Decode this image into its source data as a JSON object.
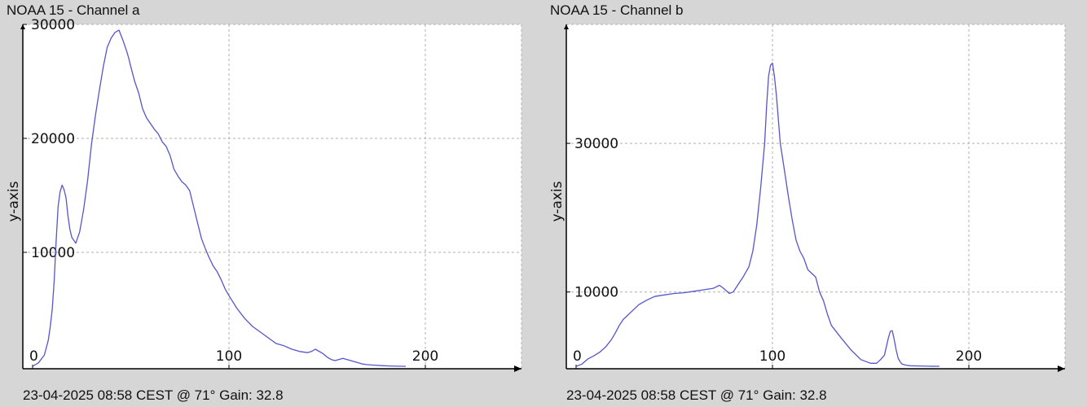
{
  "chart_data": [
    {
      "type": "line",
      "title": "NOAA 15 - Channel a",
      "footer": "23-04-2025 08:58 CEST @ 71° Gain: 32.8",
      "xlabel": "",
      "ylabel": "y-axis",
      "xlim": [
        0,
        255
      ],
      "ylim": [
        0,
        30000
      ],
      "x_ticks": [
        0,
        100,
        200
      ],
      "y_ticks": [
        10000,
        20000,
        30000
      ],
      "grid": true,
      "line_color": "#5555cc",
      "series": [
        {
          "x": [
            0,
            3,
            6,
            8,
            9,
            10,
            11,
            12,
            13,
            14,
            15,
            16,
            17,
            18,
            19,
            20,
            22,
            24,
            26,
            28,
            30,
            32,
            34,
            36,
            38,
            40,
            42,
            44,
            46,
            48,
            49,
            50,
            52,
            54,
            56,
            58,
            60,
            62,
            64,
            66,
            68,
            70,
            72,
            74,
            76,
            78,
            80,
            82,
            84,
            86,
            88,
            90,
            92,
            94,
            96,
            98,
            100,
            104,
            108,
            112,
            116,
            120,
            124,
            128,
            132,
            136,
            140,
            142,
            144,
            148,
            150,
            152,
            154,
            156,
            158,
            160,
            162,
            164,
            166,
            168,
            170,
            174,
            178,
            182,
            186,
            190
          ],
          "y": [
            0,
            300,
            1000,
            2300,
            3500,
            5000,
            7500,
            11000,
            14000,
            15300,
            15900,
            15500,
            14800,
            13200,
            12000,
            11300,
            10800,
            11800,
            13800,
            16300,
            19500,
            22000,
            24200,
            26300,
            28000,
            28800,
            29300,
            29500,
            28600,
            27600,
            27000,
            26300,
            25000,
            24000,
            22600,
            21800,
            21300,
            20800,
            20400,
            19700,
            19300,
            18500,
            17300,
            16700,
            16200,
            15900,
            15400,
            14000,
            12600,
            11200,
            10300,
            9500,
            8800,
            8300,
            7600,
            6800,
            6200,
            5100,
            4200,
            3500,
            3000,
            2500,
            2000,
            1800,
            1500,
            1300,
            1200,
            1300,
            1500,
            1100,
            800,
            600,
            500,
            600,
            700,
            600,
            500,
            400,
            300,
            200,
            150,
            100,
            60,
            30,
            10,
            0
          ]
        }
      ]
    },
    {
      "type": "line",
      "title": "NOAA 15 - Channel b",
      "footer": "23-04-2025 08:58 CEST @ 71° Gain: 32.8",
      "xlabel": "",
      "ylabel": "y-axis",
      "xlim": [
        0,
        255
      ],
      "ylim": [
        0,
        46000
      ],
      "x_ticks": [
        0,
        100,
        200
      ],
      "y_ticks": [
        10000,
        30000
      ],
      "grid": true,
      "line_color": "#5555cc",
      "series": [
        {
          "x": [
            0,
            3,
            6,
            9,
            12,
            15,
            18,
            20,
            22,
            24,
            26,
            28,
            32,
            36,
            40,
            45,
            50,
            55,
            60,
            65,
            70,
            73,
            75,
            78,
            80,
            82,
            85,
            88,
            90,
            92,
            94,
            96,
            97,
            98,
            99,
            100,
            101,
            102,
            104,
            106,
            108,
            110,
            112,
            114,
            116,
            118,
            120,
            122,
            124,
            126,
            128,
            130,
            135,
            140,
            145,
            150,
            153,
            155,
            157,
            159,
            160,
            161,
            162,
            163,
            164,
            165,
            166,
            168,
            170,
            175,
            180,
            185
          ],
          "y": [
            0,
            300,
            1000,
            1400,
            1900,
            2600,
            3600,
            4500,
            5500,
            6300,
            6800,
            7300,
            8300,
            8900,
            9400,
            9600,
            9800,
            9900,
            10100,
            10300,
            10500,
            10900,
            10500,
            9800,
            10000,
            10800,
            12000,
            13400,
            15500,
            19000,
            24000,
            30000,
            35000,
            39000,
            40500,
            40800,
            39000,
            36500,
            30000,
            26500,
            23000,
            19800,
            17000,
            15500,
            14500,
            13000,
            12500,
            12000,
            10000,
            8800,
            7000,
            5500,
            3800,
            2200,
            900,
            400,
            400,
            900,
            1500,
            3800,
            4700,
            4800,
            3600,
            2200,
            1100,
            600,
            300,
            150,
            80,
            40,
            10,
            0
          ]
        }
      ]
    }
  ]
}
